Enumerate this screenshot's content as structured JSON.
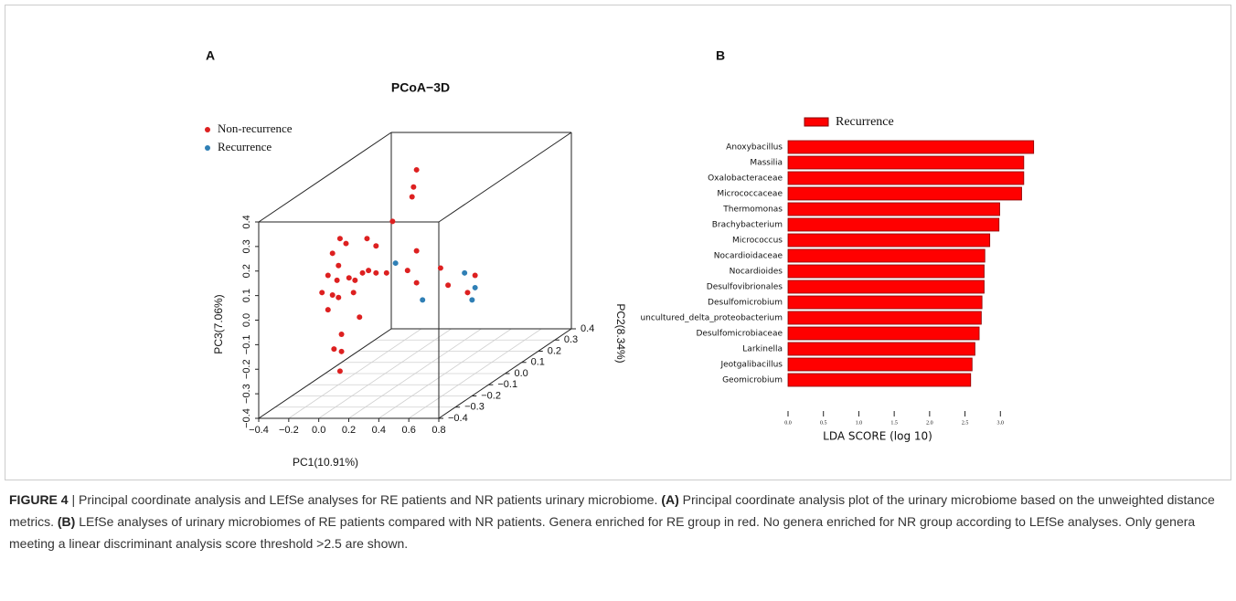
{
  "chart_data": [
    {
      "type": "scatter3d",
      "panel": "A",
      "title": "PCoA−3D",
      "xlabel": "PC1(10.91%)",
      "ylabel": "PC2(8.34%)",
      "zlabel": "PC3(7.06%)",
      "xlim": [
        -0.4,
        0.8
      ],
      "ylim": [
        -0.4,
        0.4
      ],
      "zlim": [
        -0.4,
        0.4
      ],
      "xticks": [
        {
          "value": -0.4,
          "label": "−0.4"
        },
        {
          "value": -0.2,
          "label": "−0.2"
        },
        {
          "value": 0,
          "label": "0.0"
        },
        0.2,
        0.4,
        0.6,
        0.8
      ],
      "yticks": [
        {
          "value": -0.4,
          "label": "−0.4"
        },
        {
          "value": -0.3,
          "label": "−0.3"
        },
        {
          "value": -0.2,
          "label": "−0.2"
        },
        {
          "value": -0.1,
          "label": "−0.1"
        },
        {
          "value": 0,
          "label": "0.0"
        },
        0.1,
        0.2,
        0.3,
        0.4
      ],
      "zticks": [
        {
          "value": -0.4,
          "label": "−0.4"
        },
        {
          "value": -0.3,
          "label": "−0.3"
        },
        {
          "value": -0.2,
          "label": "−0.2"
        },
        {
          "value": -0.1,
          "label": "−0.1"
        },
        {
          "value": 0,
          "label": "0.0"
        },
        0.1,
        0.2,
        0.3,
        0.4
      ],
      "grid": true,
      "legend": "upper left",
      "series": [
        {
          "name": "Non-recurrence",
          "color": "#dd2020",
          "x": [
            0.21,
            0.19,
            0.18,
            0.05,
            -0.3,
            -0.35,
            -0.26,
            -0.12,
            -0.06,
            0.21,
            -0.38,
            -0.31,
            -0.15,
            -0.11,
            -0.06,
            -0.24,
            0.01,
            0.15,
            0.37,
            -0.32,
            -0.2,
            0.42,
            -0.42,
            -0.35,
            -0.31,
            -0.21,
            0.21,
            0.6,
            -0.38,
            -0.29,
            -0.17,
            -0.34,
            -0.29,
            -0.3,
            0.55
          ],
          "y": [
            0,
            0,
            0,
            0,
            0,
            0,
            0,
            0,
            0,
            0,
            0,
            0,
            0,
            0,
            0,
            0,
            0,
            0,
            0,
            0,
            0,
            0,
            0,
            0,
            0,
            0,
            0,
            0,
            0,
            0,
            0,
            0,
            0,
            0,
            0
          ],
          "z": [
            0.43,
            0.36,
            0.32,
            0.22,
            0.15,
            0.09,
            0.13,
            0.15,
            0.12,
            0.1,
            0.0,
            0.04,
            0.01,
            0.02,
            0.01,
            -0.01,
            0.01,
            0.02,
            0.03,
            -0.02,
            -0.02,
            -0.04,
            -0.07,
            -0.08,
            -0.09,
            -0.07,
            -0.03,
            0.0,
            -0.14,
            -0.24,
            -0.17,
            -0.3,
            -0.31,
            -0.39,
            -0.07
          ]
        },
        {
          "name": "Recurrence",
          "color": "#2f7fb5",
          "x": [
            0.07,
            0.25,
            0.53,
            0.6,
            0.58
          ],
          "y": [
            0,
            0,
            0,
            0,
            0
          ],
          "z": [
            0.05,
            -0.1,
            0.01,
            -0.05,
            -0.1
          ]
        }
      ]
    },
    {
      "type": "bar",
      "panel": "B",
      "orientation": "horizontal",
      "xlabel": "LDA SCORE (log 10)",
      "xlim": [
        0,
        3.5
      ],
      "xticks": [
        {
          "value": 0,
          "label": "0.0"
        },
        0.5,
        {
          "value": 1,
          "label": "1.0"
        },
        1.5,
        {
          "value": 2,
          "label": "2.0"
        },
        2.5,
        {
          "value": 3,
          "label": "3.0"
        }
      ],
      "legend": "top",
      "categories": [
        "Anoxybacillus",
        "Massilia",
        "Oxalobacteraceae",
        "Micrococcaceae",
        "Thermomonas",
        "Brachybacterium",
        "Micrococcus",
        "Nocardioidaceae",
        "Nocardioides",
        "Desulfovibrionales",
        "Desulfomicrobium",
        "uncultured_delta_proteobacterium",
        "Desulfomicrobiaceae",
        "Larkinella",
        "Jeotgalibacillus",
        "Geomicrobium"
      ],
      "series": [
        {
          "name": "Recurrence",
          "color": "#ff0000",
          "values": [
            3.47,
            3.33,
            3.33,
            3.3,
            2.99,
            2.98,
            2.85,
            2.78,
            2.77,
            2.77,
            2.74,
            2.73,
            2.7,
            2.64,
            2.6,
            2.58
          ]
        }
      ]
    }
  ],
  "caption": [
    "FIGURE 4",
    " | Principal coordinate analysis and LEfSe analyses for RE patients and NR patients urinary microbiome. ",
    "(A)",
    " Principal coordinate analysis plot of the urinary microbiome based on the unweighted distance metrics. ",
    "(B)",
    " LEfSe analyses of urinary microbiomes of RE patients compared with NR patients. Genera enriched for RE group in red. No genera enriched for NR group according to LEfSe analyses. Only genera meeting a linear discriminant analysis score threshold >2.5 are shown."
  ]
}
